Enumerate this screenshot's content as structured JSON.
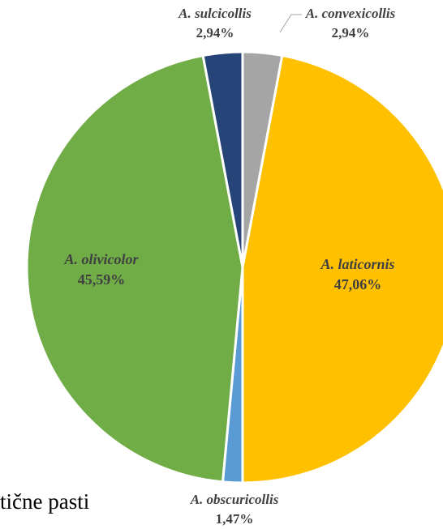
{
  "chart_data": {
    "type": "pie",
    "title": "",
    "slices": [
      {
        "label": "A. convexicollis",
        "value": 2.94,
        "value_label": "2,94%",
        "color": "#a5a5a5"
      },
      {
        "label": "A. laticornis",
        "value": 47.06,
        "value_label": "47,06%",
        "color": "#ffc000"
      },
      {
        "label": "A. obscuricollis",
        "value": 1.47,
        "value_label": "1,47%",
        "color": "#5b9bd5"
      },
      {
        "label": "A. olivicolor",
        "value": 45.59,
        "value_label": "45,59%",
        "color": "#70ad47"
      },
      {
        "label": "A. sulcicollis",
        "value": 2.94,
        "value_label": "2,94%",
        "color": "#264478"
      }
    ],
    "label_color": "#404040"
  },
  "caption_fragment": "tične pasti"
}
